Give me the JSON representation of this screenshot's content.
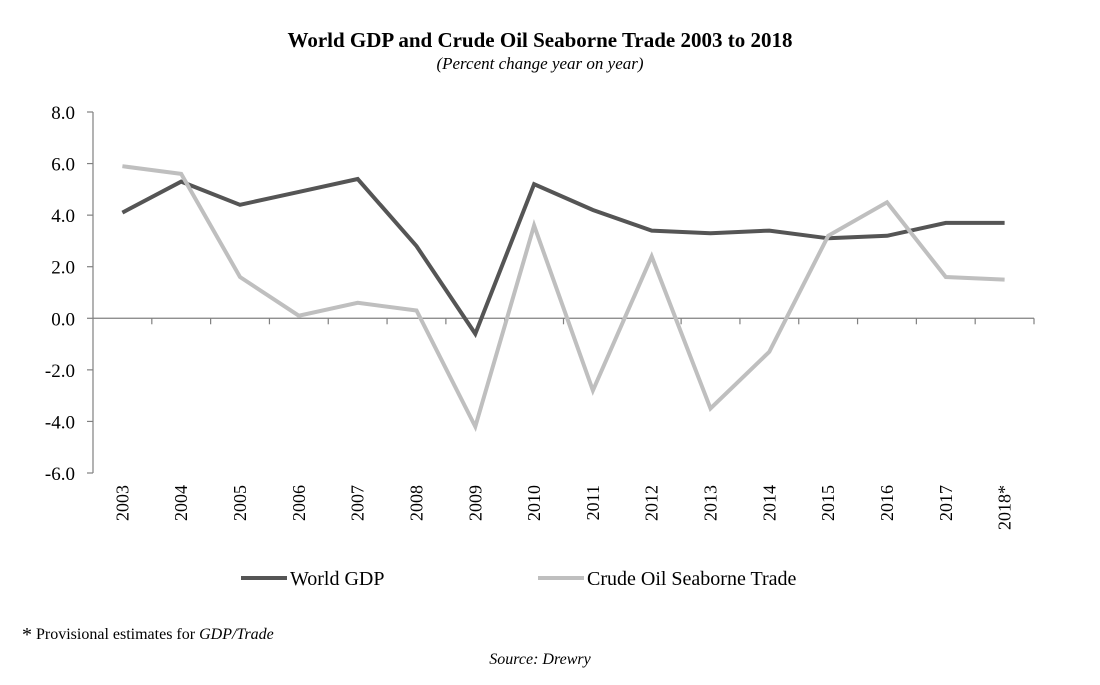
{
  "chart_data": {
    "type": "line",
    "title": "World GDP and Crude Oil Seaborne Trade 2003 to 2018",
    "subtitle": "(Percent change year on year)",
    "categories": [
      "2003",
      "2004",
      "2005",
      "2006",
      "2007",
      "2008",
      "2009",
      "2010",
      "2011",
      "2012",
      "2013",
      "2014",
      "2015",
      "2016",
      "2017",
      "2018*"
    ],
    "ylim": [
      -6,
      8
    ],
    "yticks": [
      8,
      6,
      4,
      2,
      0,
      -2,
      -4,
      -6
    ],
    "ytick_labels": [
      "8.0",
      "6.0",
      "4.0",
      "2.0",
      "0.0",
      "-2.0",
      "-4.0",
      "-6.0"
    ],
    "grid": false,
    "legend_position": "bottom",
    "series": [
      {
        "name": "World GDP",
        "color": "#555555",
        "values": [
          4.1,
          5.3,
          4.4,
          4.9,
          5.4,
          2.8,
          -0.6,
          5.2,
          4.2,
          3.4,
          3.3,
          3.4,
          3.1,
          3.2,
          3.7,
          3.7
        ]
      },
      {
        "name": "Crude Oil Seaborne Trade",
        "color": "#bfbfbf",
        "values": [
          5.9,
          5.6,
          1.6,
          0.1,
          0.6,
          0.3,
          -4.2,
          3.6,
          -2.8,
          2.4,
          -3.5,
          -1.3,
          3.2,
          4.5,
          1.6,
          1.5
        ]
      }
    ]
  },
  "footnote": {
    "marker": "*",
    "text": "Provisional estimates for ",
    "italic": "GDP/Trade"
  },
  "source": "Source: Drewry"
}
